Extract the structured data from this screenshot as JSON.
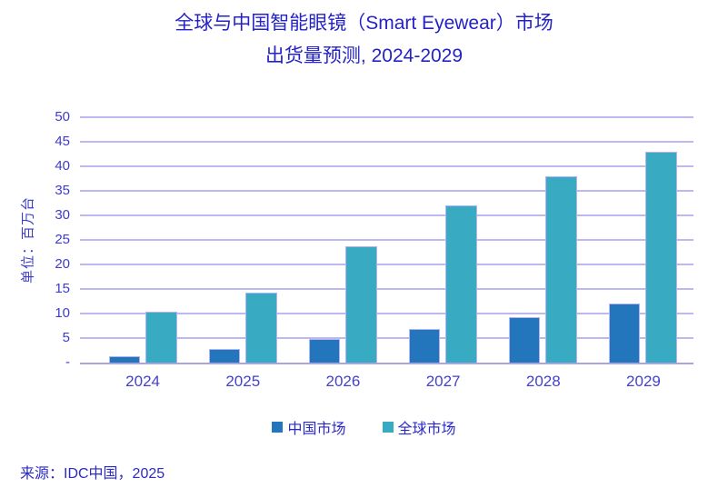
{
  "title": {
    "line1": "全球与中国智能眼镜（Smart Eyewear）市场",
    "line2": "出货量预测, 2024-2029"
  },
  "chart_data": {
    "type": "bar",
    "categories": [
      "2024",
      "2025",
      "2026",
      "2027",
      "2028",
      "2029"
    ],
    "series": [
      {
        "name": "中国市场",
        "color": "#2376bc",
        "values": [
          1.3,
          2.8,
          4.9,
          6.8,
          9.2,
          12.0
        ]
      },
      {
        "name": "全球市场",
        "color": "#38abc2",
        "values": [
          10.3,
          14.2,
          23.7,
          32.1,
          37.9,
          43.0
        ]
      }
    ],
    "xlabel": "",
    "ylabel": "单位：百万台",
    "ylim": [
      0,
      50
    ],
    "ytick_step": 5,
    "ytick_labels": [
      "-",
      "5",
      "10",
      "15",
      "20",
      "25",
      "30",
      "35",
      "40",
      "45",
      "50"
    ],
    "grid": true,
    "gridline_color": "#bbb9ef",
    "legend_position": "bottom"
  },
  "source": "来源：IDC中国，2025",
  "colors": {
    "title_text": "#2523c5",
    "axis_text": "#3e3cc8",
    "background": "#ffffff"
  }
}
